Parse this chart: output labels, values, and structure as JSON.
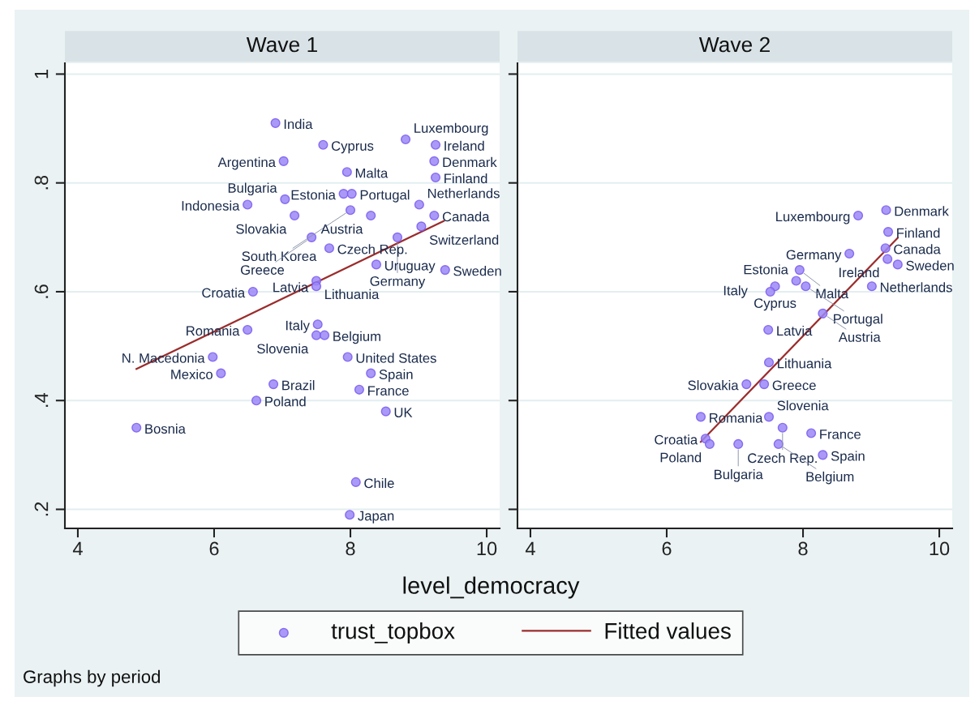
{
  "chart_data": [
    {
      "type": "scatter",
      "title": "Wave 1",
      "xlabel": "level_democracy",
      "legend": "bottom",
      "grid": "y",
      "xlim": [
        3.81,
        10.19
      ],
      "ylim": [
        0.165,
        1.02
      ],
      "xticks": [
        4,
        6,
        8,
        10
      ],
      "yticks": [
        {
          "value": 0.2,
          "label": ".2"
        },
        {
          "value": 0.4,
          "label": ".4"
        },
        {
          "value": 0.6,
          "label": ".6"
        },
        {
          "value": 0.8,
          "label": ".8"
        },
        1
      ],
      "series": [
        {
          "name": "trust_topbox",
          "marker": "circle",
          "color": "#9b87f5",
          "x": [
            6.9,
            7.6,
            8.81,
            9.25,
            7.02,
            9.23,
            7.95,
            9.25,
            7.9,
            8.02,
            7.04,
            6.49,
            9.01,
            8.0,
            7.18,
            8.3,
            9.23,
            9.04,
            7.43,
            8.69,
            7.69,
            8.38,
            9.39,
            7.5,
            7.5,
            6.57,
            7.52,
            6.49,
            7.5,
            7.62,
            5.98,
            7.96,
            6.1,
            8.3,
            6.87,
            8.13,
            6.62,
            8.52,
            4.86,
            8.08,
            7.99
          ],
          "values": [
            0.91,
            0.87,
            0.88,
            0.87,
            0.84,
            0.84,
            0.82,
            0.81,
            0.78,
            0.78,
            0.77,
            0.76,
            0.76,
            0.75,
            0.74,
            0.74,
            0.74,
            0.72,
            0.7,
            0.7,
            0.68,
            0.65,
            0.64,
            0.62,
            0.61,
            0.6,
            0.54,
            0.53,
            0.52,
            0.52,
            0.48,
            0.48,
            0.45,
            0.45,
            0.43,
            0.42,
            0.4,
            0.38,
            0.35,
            0.25,
            0.19
          ]
        },
        {
          "name": "Fitted values",
          "type": "line",
          "color": "#9b2c2c",
          "x": [
            4.86,
            9.37
          ],
          "values": [
            0.458,
            0.73
          ]
        }
      ],
      "annotations": [
        {
          "text": "India",
          "x": 6.9,
          "y": 0.91
        },
        {
          "text": "Cyprus",
          "x": 7.6,
          "y": 0.87
        },
        {
          "text": "Luxembourg",
          "x": 8.81,
          "y": 0.88
        },
        {
          "text": "Ireland",
          "x": 9.25,
          "y": 0.87
        },
        {
          "text": "Argentina",
          "x": 7.02,
          "y": 0.84
        },
        {
          "text": "Denmark",
          "x": 9.23,
          "y": 0.84
        },
        {
          "text": "Malta",
          "x": 7.95,
          "y": 0.82
        },
        {
          "text": "Finland",
          "x": 9.25,
          "y": 0.81
        },
        {
          "text": "Estonia",
          "x": 7.9,
          "y": 0.78
        },
        {
          "text": "Portugal",
          "x": 8.02,
          "y": 0.78
        },
        {
          "text": "Bulgaria",
          "x": 7.04,
          "y": 0.77
        },
        {
          "text": "Indonesia",
          "x": 6.49,
          "y": 0.76
        },
        {
          "text": "Netherlands",
          "x": 9.01,
          "y": 0.76
        },
        {
          "text": "South Korea",
          "x": 8.0,
          "y": 0.75
        },
        {
          "text": "Slovakia",
          "x": 7.18,
          "y": 0.74
        },
        {
          "text": "Austria",
          "x": 8.3,
          "y": 0.74
        },
        {
          "text": "Canada",
          "x": 9.23,
          "y": 0.74
        },
        {
          "text": "Switzerland",
          "x": 9.04,
          "y": 0.72
        },
        {
          "text": "Greece",
          "x": 7.43,
          "y": 0.7
        },
        {
          "text": "Germany",
          "x": 8.69,
          "y": 0.7
        },
        {
          "text": "Czech Rep.",
          "x": 7.69,
          "y": 0.68
        },
        {
          "text": "Uruguay",
          "x": 8.38,
          "y": 0.65
        },
        {
          "text": "Sweden",
          "x": 9.39,
          "y": 0.64
        },
        {
          "text": "Lithuania",
          "x": 7.5,
          "y": 0.62
        },
        {
          "text": "Latvia",
          "x": 7.5,
          "y": 0.61
        },
        {
          "text": "Croatia",
          "x": 6.57,
          "y": 0.6
        },
        {
          "text": "Italy",
          "x": 7.52,
          "y": 0.54
        },
        {
          "text": "Romania",
          "x": 6.49,
          "y": 0.53
        },
        {
          "text": "Slovenia",
          "x": 7.5,
          "y": 0.52
        },
        {
          "text": "Belgium",
          "x": 7.62,
          "y": 0.52
        },
        {
          "text": "N. Macedonia",
          "x": 5.98,
          "y": 0.48
        },
        {
          "text": "United States",
          "x": 7.96,
          "y": 0.48
        },
        {
          "text": "Mexico",
          "x": 6.1,
          "y": 0.45
        },
        {
          "text": "Spain",
          "x": 8.3,
          "y": 0.45
        },
        {
          "text": "Brazil",
          "x": 6.87,
          "y": 0.43
        },
        {
          "text": "France",
          "x": 8.13,
          "y": 0.42
        },
        {
          "text": "Poland",
          "x": 6.62,
          "y": 0.4
        },
        {
          "text": "UK",
          "x": 8.52,
          "y": 0.38
        },
        {
          "text": "Bosnia",
          "x": 4.86,
          "y": 0.35
        },
        {
          "text": "Chile",
          "x": 8.08,
          "y": 0.25
        },
        {
          "text": "Japan",
          "x": 7.99,
          "y": 0.19
        },
        "Graphs by period"
      ]
    },
    {
      "type": "scatter",
      "title": "Wave 2",
      "grid": "y",
      "tick_labels": "x",
      "xlim": [
        3.81,
        10.19
      ],
      "ylim": [
        0.165,
        1.02
      ],
      "xticks": [
        4,
        6,
        8,
        10
      ],
      "yticks": [
        {
          "value": 0.2,
          "label": null
        },
        {
          "value": 0.4,
          "label": null
        },
        {
          "value": 0.6,
          "label": null
        },
        {
          "value": 0.8,
          "label": null
        },
        {
          "value": 1,
          "label": null
        }
      ],
      "series": [
        {
          "marker": "circle",
          "color": "#9b87f5",
          "x": [
            9.22,
            8.81,
            9.25,
            9.21,
            8.68,
            9.24,
            9.39,
            7.95,
            7.9,
            7.59,
            8.04,
            9.01,
            7.52,
            8.29,
            7.49,
            7.5,
            7.17,
            7.43,
            6.5,
            7.5,
            7.7,
            8.12,
            6.57,
            6.63,
            7.05,
            7.64,
            8.29
          ],
          "values": [
            0.75,
            0.74,
            0.71,
            0.68,
            0.67,
            0.66,
            0.65,
            0.64,
            0.62,
            0.61,
            0.61,
            0.61,
            0.6,
            0.56,
            0.53,
            0.47,
            0.43,
            0.43,
            0.37,
            0.37,
            0.35,
            0.34,
            0.33,
            0.32,
            0.32,
            0.32,
            0.3
          ]
        },
        {
          "type": "line",
          "color": "#9b2c2c",
          "x": [
            6.5,
            9.39
          ],
          "values": [
            0.324,
            0.699
          ]
        }
      ],
      "annotations": [
        {
          "text": "Denmark",
          "x": 9.22,
          "y": 0.75
        },
        {
          "text": "Luxembourg",
          "x": 8.81,
          "y": 0.74
        },
        {
          "text": "Finland",
          "x": 9.25,
          "y": 0.71
        },
        {
          "text": "Canada",
          "x": 9.21,
          "y": 0.68
        },
        {
          "text": "Germany",
          "x": 8.68,
          "y": 0.67
        },
        {
          "text": "Ireland",
          "x": 9.24,
          "y": 0.66
        },
        {
          "text": "Sweden",
          "x": 9.39,
          "y": 0.65
        },
        {
          "text": "Malta",
          "x": 7.95,
          "y": 0.64
        },
        {
          "text": "Estonia",
          "x": 7.9,
          "y": 0.62
        },
        {
          "text": "Cyprus",
          "x": 7.59,
          "y": 0.61
        },
        {
          "text": "Portugal",
          "x": 8.04,
          "y": 0.61
        },
        {
          "text": "Netherlands",
          "x": 9.01,
          "y": 0.61
        },
        {
          "text": "Italy",
          "x": 7.52,
          "y": 0.6
        },
        {
          "text": "Austria",
          "x": 8.29,
          "y": 0.56
        },
        {
          "text": "Latvia",
          "x": 7.49,
          "y": 0.53
        },
        {
          "text": "Lithuania",
          "x": 7.5,
          "y": 0.47
        },
        {
          "text": "Slovakia",
          "x": 7.17,
          "y": 0.43
        },
        {
          "text": "Greece",
          "x": 7.43,
          "y": 0.43
        },
        {
          "text": "Romania",
          "x": 6.5,
          "y": 0.37
        },
        {
          "text": "Slovenia",
          "x": 7.5,
          "y": 0.37
        },
        {
          "text": "Czech Rep.",
          "x": 7.7,
          "y": 0.35
        },
        {
          "text": "France",
          "x": 8.12,
          "y": 0.34
        },
        {
          "text": "Croatia",
          "x": 6.57,
          "y": 0.33
        },
        {
          "text": "Poland",
          "x": 6.63,
          "y": 0.32
        },
        {
          "text": "Bulgaria",
          "x": 7.05,
          "y": 0.32
        },
        {
          "text": "Belgium",
          "x": 7.64,
          "y": 0.32
        },
        {
          "text": "Spain",
          "x": 8.29,
          "y": 0.3
        }
      ]
    }
  ]
}
